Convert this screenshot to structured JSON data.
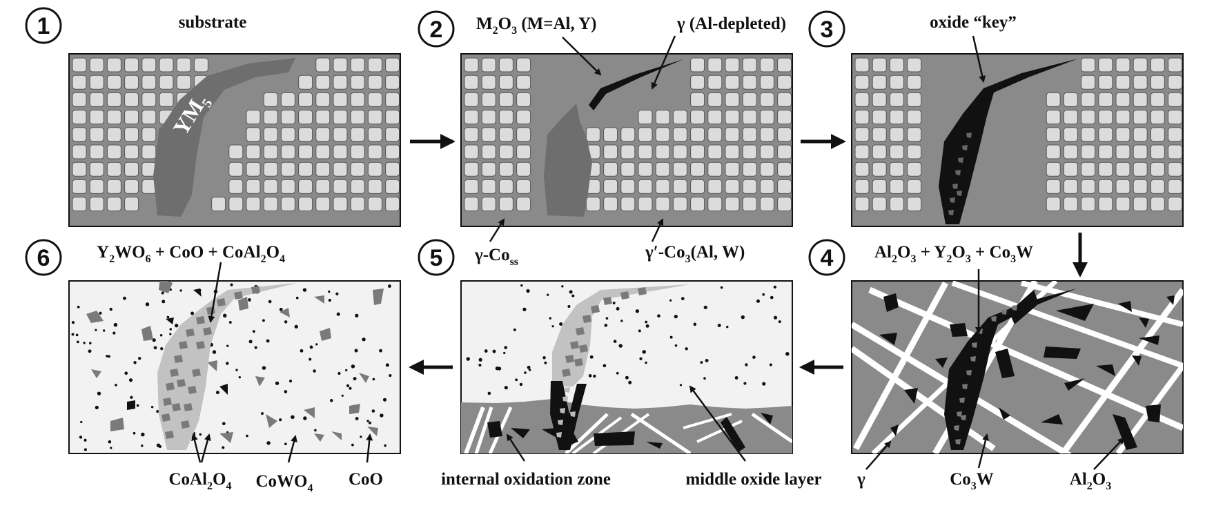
{
  "colors": {
    "matrix": "#8a8a8a",
    "precipitate": "#dcdcdc",
    "ym5": "#6e6e6e",
    "oxide": "#111111",
    "light_layer": "#f2f2f2",
    "spinel_particle": "#7a7a7a",
    "gamma_band": "#ffffff"
  },
  "steps": [
    {
      "number": "1",
      "title": "substrate",
      "phase_label": "YM",
      "phase_sub": "5"
    },
    {
      "number": "2"
    },
    {
      "number": "3",
      "title": "oxide “key”"
    },
    {
      "number": "4"
    },
    {
      "number": "5"
    },
    {
      "number": "6"
    }
  ],
  "labels": {
    "m2o3": {
      "a": "M",
      "b": "2",
      "c": "O",
      "d": "3",
      "e": " (M=Al, Y)"
    },
    "gamma_depleted": "γ (Al-depleted)",
    "gamma_coss": {
      "a": "γ-Co",
      "b": "ss"
    },
    "gamma_prime": {
      "a": "γ′-Co",
      "b": "3",
      "c": "(Al, W)"
    },
    "step4_top": {
      "a": "Al",
      "b": "2",
      "c": "O",
      "d": "3",
      "e": " + Y",
      "f": "2",
      "g": "O",
      "h": "3",
      "i": " + Co",
      "j": "3",
      "k": "W"
    },
    "gamma": "γ",
    "co3w": {
      "a": "Co",
      "b": "3",
      "c": "W"
    },
    "al2o3": {
      "a": "Al",
      "b": "2",
      "c": "O",
      "d": "3"
    },
    "internal_oxidation_zone": "internal oxidation zone",
    "middle_oxide_layer": "middle oxide layer",
    "step6_top": {
      "a": "Y",
      "b": "2",
      "c": "WO",
      "d": "6",
      "e": " + CoO + CoAl",
      "f": "2",
      "g": "O",
      "h": "4"
    },
    "coal2o4": {
      "a": "CoAl",
      "b": "2",
      "c": "O",
      "d": "4"
    },
    "cowo4": {
      "a": "CoWO",
      "b": "4"
    },
    "coo": "CoO"
  }
}
